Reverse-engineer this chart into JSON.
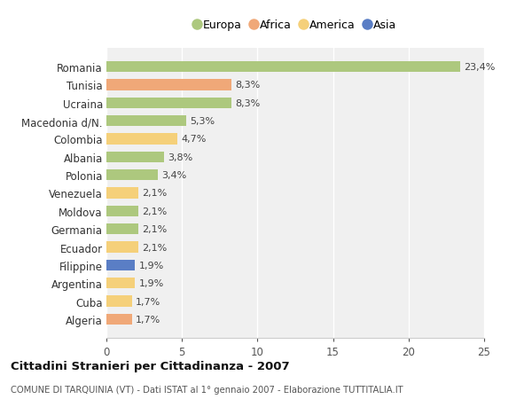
{
  "countries": [
    "Romania",
    "Tunisia",
    "Ucraina",
    "Macedonia d/N.",
    "Colombia",
    "Albania",
    "Polonia",
    "Venezuela",
    "Moldova",
    "Germania",
    "Ecuador",
    "Filippine",
    "Argentina",
    "Cuba",
    "Algeria"
  ],
  "values": [
    23.4,
    8.3,
    8.3,
    5.3,
    4.7,
    3.8,
    3.4,
    2.1,
    2.1,
    2.1,
    2.1,
    1.9,
    1.9,
    1.7,
    1.7
  ],
  "labels": [
    "23,4%",
    "8,3%",
    "8,3%",
    "5,3%",
    "4,7%",
    "3,8%",
    "3,4%",
    "2,1%",
    "2,1%",
    "2,1%",
    "2,1%",
    "1,9%",
    "1,9%",
    "1,7%",
    "1,7%"
  ],
  "continents": [
    "Europa",
    "Africa",
    "Europa",
    "Europa",
    "America",
    "Europa",
    "Europa",
    "America",
    "Europa",
    "Europa",
    "America",
    "Asia",
    "America",
    "America",
    "Africa"
  ],
  "colors": {
    "Europa": "#adc87e",
    "Africa": "#f0a878",
    "America": "#f5d07a",
    "Asia": "#5a7ec5"
  },
  "legend_order": [
    "Europa",
    "Africa",
    "America",
    "Asia"
  ],
  "xlim": [
    0,
    25
  ],
  "xticks": [
    0,
    5,
    10,
    15,
    20,
    25
  ],
  "title": "Cittadini Stranieri per Cittadinanza - 2007",
  "subtitle": "COMUNE DI TARQUINIA (VT) - Dati ISTAT al 1° gennaio 2007 - Elaborazione TUTTITALIA.IT",
  "background_color": "#ffffff",
  "plot_background": "#f0f0f0",
  "grid_color": "#ffffff"
}
